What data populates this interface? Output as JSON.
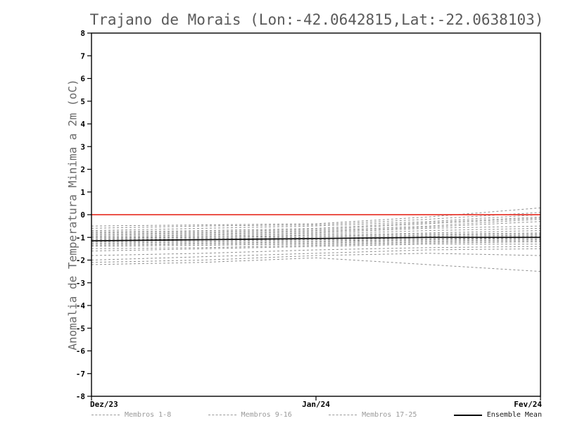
{
  "chart_data": {
    "type": "line",
    "title": "Trajano de Morais (Lon:-42.0642815,Lat:-22.0638103)",
    "ylabel": "Anomalia de Temperatura Minima a 2m (oC)",
    "xlabel": "",
    "ylim": [
      -8,
      8
    ],
    "ytick_step": 1,
    "xlim": [
      0,
      2
    ],
    "x": [
      0,
      0.5,
      1,
      1.5,
      2
    ],
    "x_ticklabels": [
      "Dez/23",
      "Jan/24",
      "Fev/24"
    ],
    "grid": false,
    "zero_line": {
      "y": 0,
      "color": "#e8392f"
    },
    "colors": {
      "member": "#8f8f8f",
      "mean": "#111111",
      "zero": "#e8392f",
      "title": "#5a5a5a",
      "frame": "#000000"
    },
    "series_groups": [
      {
        "label": "Membros 1-8",
        "values": [
          [
            -0.5,
            -0.45,
            -0.4,
            -0.1,
            0.3
          ],
          [
            -0.6,
            -0.5,
            -0.45,
            -0.2,
            0.1
          ],
          [
            -0.7,
            -0.6,
            -0.5,
            -0.3,
            0.0
          ],
          [
            -0.75,
            -0.7,
            -0.6,
            -0.35,
            -0.1
          ],
          [
            -0.8,
            -0.75,
            -0.65,
            -0.4,
            -0.15
          ],
          [
            -0.85,
            -0.8,
            -0.7,
            -0.5,
            -0.2
          ],
          [
            -0.9,
            -0.85,
            -0.75,
            -0.55,
            -0.3
          ],
          [
            -0.95,
            -0.9,
            -0.8,
            -0.6,
            -0.5
          ]
        ]
      },
      {
        "label": "Membros 9-16",
        "values": [
          [
            -1.0,
            -0.95,
            -0.85,
            -0.7,
            -0.6
          ],
          [
            -1.0,
            -1.0,
            -0.9,
            -0.8,
            -0.7
          ],
          [
            -1.05,
            -1.0,
            -0.95,
            -0.85,
            -0.8
          ],
          [
            -1.1,
            -1.05,
            -1.0,
            -0.9,
            -0.85
          ],
          [
            -1.1,
            -1.1,
            -1.05,
            -0.95,
            -0.9
          ],
          [
            -1.15,
            -1.1,
            -1.1,
            -1.0,
            -0.95
          ],
          [
            -1.2,
            -1.15,
            -1.1,
            -1.05,
            -1.0
          ],
          [
            -1.25,
            -1.2,
            -1.15,
            -1.1,
            -1.0
          ]
        ]
      },
      {
        "label": "Membros 17-25",
        "values": [
          [
            -1.3,
            -1.25,
            -1.2,
            -1.1,
            -1.05
          ],
          [
            -1.35,
            -1.3,
            -1.25,
            -1.15,
            -1.1
          ],
          [
            -1.4,
            -1.35,
            -1.3,
            -1.2,
            -1.15
          ],
          [
            -1.5,
            -1.45,
            -1.35,
            -1.25,
            -1.2
          ],
          [
            -1.6,
            -1.5,
            -1.4,
            -1.3,
            -1.3
          ],
          [
            -1.8,
            -1.7,
            -1.55,
            -1.45,
            -1.4
          ],
          [
            -2.0,
            -1.85,
            -1.7,
            -1.55,
            -1.5
          ],
          [
            -2.1,
            -2.0,
            -1.8,
            -1.7,
            -1.8
          ],
          [
            -2.2,
            -2.1,
            -1.9,
            -2.2,
            -2.5
          ]
        ]
      }
    ],
    "ensemble_mean": {
      "label": "Ensemble Mean",
      "values": [
        -1.15,
        -1.1,
        -1.05,
        -1.0,
        -1.0
      ]
    },
    "legend": [
      {
        "label": "Membros 1-8",
        "style": "dashed"
      },
      {
        "label": "Membros 9-16",
        "style": "dashed"
      },
      {
        "label": "Membros 17-25",
        "style": "dashed"
      },
      {
        "label": "Ensemble Mean",
        "style": "solid"
      }
    ]
  }
}
